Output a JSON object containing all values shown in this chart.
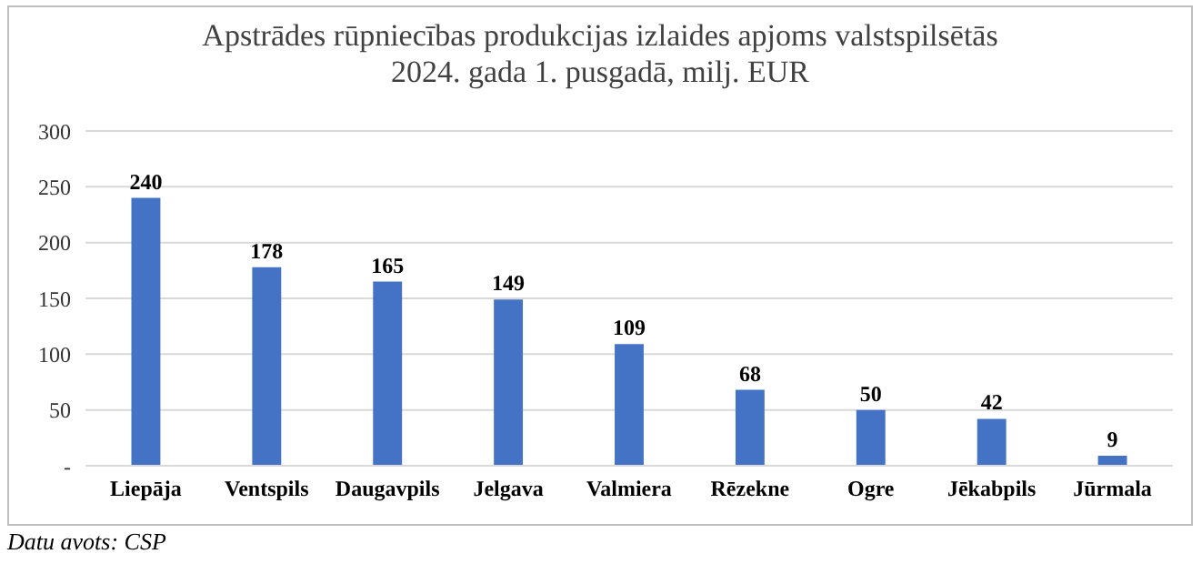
{
  "chart_data": {
    "type": "bar",
    "title": "Apstrādes rūpniecības produkcijas izlaides apjoms valstspilsētās 2024. gada 1. pusgadā, milj. EUR",
    "categories": [
      "Liepāja",
      "Ventspils",
      "Daugavpils",
      "Jelgava",
      "Valmiera",
      "Rēzekne",
      "Ogre",
      "Jēkabpils",
      "Jūrmala"
    ],
    "values": [
      240,
      178,
      165,
      149,
      109,
      68,
      50,
      42,
      9
    ],
    "color": "#4472c4",
    "ylim": [
      0,
      300
    ],
    "yticks": [
      {
        "value": 0,
        "label": "-"
      },
      50,
      100,
      150,
      200,
      250,
      300
    ],
    "grid": "y",
    "data_labels": true,
    "annotations": [
      "Datu avots: CSP"
    ]
  }
}
